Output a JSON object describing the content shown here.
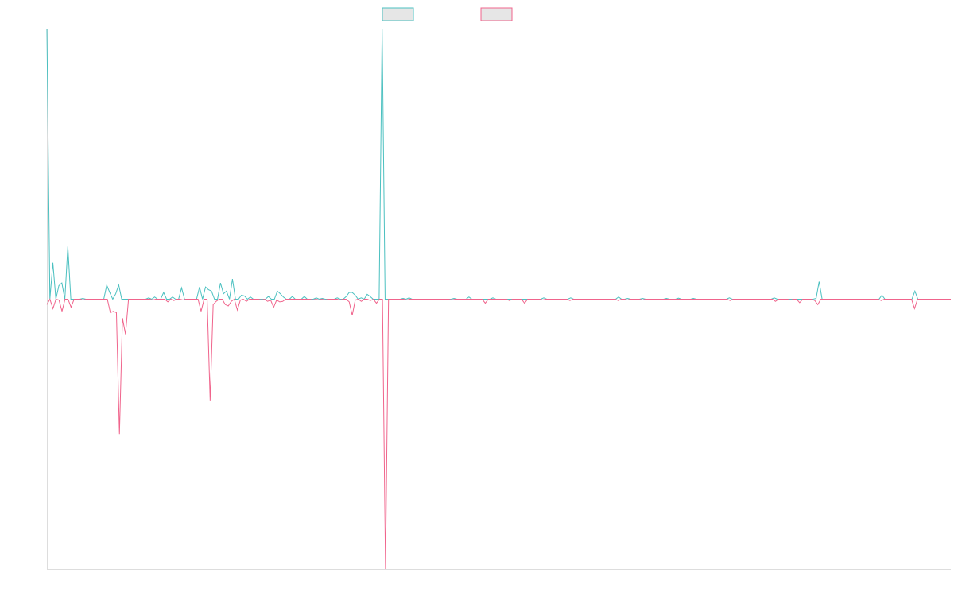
{
  "chart_data": {
    "type": "line",
    "title": "",
    "xlabel": "",
    "ylabel": "",
    "grid": false,
    "legend_position": "top-center",
    "ylim": [
      -1,
      1
    ],
    "series": [
      {
        "color": "#4bc0c0",
        "values": [
          1.0,
          0.0,
          0.135,
          0.0,
          0.05,
          0.06,
          0.0,
          0.195,
          0.0,
          0.0,
          0.0,
          0.0,
          0.003,
          0.0,
          0.0,
          0.0,
          0.0,
          0.0,
          0.0,
          0.0,
          0.052,
          0.025,
          0.0,
          0.02,
          0.053,
          0.0,
          0.0,
          0.0,
          0.0,
          0.0,
          0.0,
          0.0,
          0.0,
          0.0,
          0.005,
          0.0,
          0.008,
          0.0,
          0.0,
          0.025,
          0.0,
          0.0,
          0.008,
          0.0,
          0.0,
          0.042,
          0.0,
          0.0,
          0.0,
          0.0,
          0.0,
          0.045,
          0.0,
          0.045,
          0.035,
          0.03,
          0.0,
          0.0,
          0.06,
          0.02,
          0.03,
          0.0,
          0.075,
          0.0,
          0.0,
          0.015,
          0.012,
          0.0,
          0.008,
          0.0,
          0.0,
          0.0,
          0.0,
          0.0,
          0.01,
          0.0,
          0.0,
          0.03,
          0.02,
          0.008,
          0.0,
          0.0,
          0.01,
          0.0,
          0.0,
          0.0,
          0.01,
          0.0,
          0.0,
          0.0,
          0.005,
          0.0,
          0.003,
          0.0,
          0.0,
          0.0,
          0.0,
          0.005,
          0.0,
          0.0,
          0.01,
          0.025,
          0.025,
          0.015,
          0.0,
          0.005,
          0.0,
          0.018,
          0.01,
          0.0,
          0.0,
          0.0,
          1.0,
          0.0,
          0.0,
          0.0,
          0.0,
          0.0,
          0.0,
          0.003,
          0.0,
          0.005,
          0.0,
          0.0,
          0.0,
          0.0,
          0.0,
          0.0,
          0.0,
          0.0,
          0.0,
          0.0,
          0.0,
          0.0,
          0.0,
          0.0,
          0.003,
          0.0,
          0.0,
          0.0,
          0.0,
          0.008,
          0.0,
          0.0,
          0.0,
          0.0,
          0.0,
          0.0,
          0.0,
          0.005,
          0.0,
          0.0,
          0.0,
          0.0,
          0.0,
          0.0,
          0.0,
          0.0,
          0.0,
          0.0,
          0.0,
          0.0,
          0.0,
          0.0,
          0.0,
          0.0,
          0.005,
          0.0,
          0.0,
          0.0,
          0.0,
          0.0,
          0.0,
          0.0,
          0.0,
          0.005,
          0.0,
          0.0,
          0.0,
          0.0,
          0.0,
          0.0,
          0.0,
          0.0,
          0.0,
          0.0,
          0.0,
          0.0,
          0.0,
          0.0,
          0.0,
          0.008,
          0.0,
          0.0,
          0.003,
          0.0,
          0.0,
          0.0,
          0.0,
          0.003,
          0.0,
          0.0,
          0.0,
          0.0,
          0.0,
          0.0,
          0.0,
          0.003,
          0.0,
          0.0,
          0.0,
          0.004,
          0.0,
          0.0,
          0.0,
          0.0,
          0.003,
          0.0,
          0.0,
          0.0,
          0.0,
          0.0,
          0.0,
          0.0,
          0.0,
          0.0,
          0.0,
          0.0,
          0.005,
          0.0,
          0.0,
          0.0,
          0.0,
          0.0,
          0.0,
          0.0,
          0.0,
          0.0,
          0.0,
          0.0,
          0.0,
          0.0,
          0.0,
          0.005,
          0.0,
          0.0,
          0.0,
          0.0,
          0.0,
          0.0,
          0.0,
          0.0,
          0.0,
          0.0,
          0.0,
          0.0,
          0.0,
          0.003,
          0.065,
          0.0,
          0.0,
          0.0,
          0.0,
          0.0,
          0.0,
          0.0,
          0.0,
          0.0,
          0.0,
          0.0,
          0.0,
          0.0,
          0.0,
          0.0,
          0.0,
          0.0,
          0.0,
          0.0,
          0.0,
          0.015,
          0.0,
          0.0,
          0.0,
          0.0,
          0.0,
          0.0,
          0.0,
          0.0,
          0.0,
          0.0,
          0.03,
          0.0,
          0.0,
          0.0,
          0.0,
          0.0,
          0.0,
          0.0,
          0.0,
          0.0,
          0.0,
          0.0,
          0.0
        ]
      },
      {
        "color": "#f0648c",
        "values": [
          -0.02,
          0.0,
          -0.035,
          0.0,
          -0.003,
          -0.045,
          0.0,
          0.0,
          -0.03,
          0.0,
          0.0,
          0.0,
          -0.003,
          0.0,
          0.0,
          0.0,
          0.0,
          0.0,
          0.0,
          0.0,
          0.0,
          -0.05,
          -0.045,
          -0.05,
          -0.5,
          -0.07,
          -0.13,
          0.0,
          0.0,
          0.0,
          0.0,
          0.0,
          0.0,
          0.0,
          0.0,
          -0.003,
          0.0,
          0.0,
          0.0,
          0.0,
          -0.01,
          0.0,
          -0.005,
          0.0,
          0.0,
          -0.003,
          0.0,
          0.0,
          0.0,
          0.0,
          0.0,
          -0.045,
          0.0,
          0.0,
          -0.375,
          -0.02,
          -0.008,
          0.0,
          0.0,
          -0.02,
          -0.025,
          -0.008,
          0.0,
          -0.04,
          -0.003,
          0.0,
          -0.008,
          0.0,
          0.0,
          0.0,
          0.0,
          -0.003,
          0.0,
          -0.008,
          -0.003,
          -0.03,
          -0.003,
          -0.01,
          -0.008,
          0.0,
          0.0,
          0.0,
          0.0,
          0.0,
          0.0,
          0.0,
          0.0,
          0.0,
          -0.003,
          0.0,
          -0.003,
          0.0,
          -0.003,
          0.0,
          0.0,
          0.0,
          0.0,
          -0.003,
          0.0,
          0.0,
          -0.01,
          -0.06,
          -0.003,
          0.0,
          -0.008,
          0.0,
          0.0,
          -0.005,
          0.0,
          -0.015,
          0.0,
          0.0,
          -1.0,
          0.0,
          0.0,
          0.0,
          0.0,
          0.0,
          0.0,
          -0.003,
          0.0,
          0.0,
          0.0,
          0.0,
          0.0,
          0.0,
          0.0,
          0.0,
          0.0,
          0.0,
          0.0,
          0.0,
          0.0,
          0.0,
          -0.003,
          0.0,
          0.0,
          0.0,
          0.0,
          0.0,
          0.0,
          0.0,
          0.0,
          0.0,
          0.0,
          -0.015,
          0.0,
          0.0,
          0.0,
          0.0,
          0.0,
          0.0,
          0.0,
          -0.005,
          0.0,
          0.0,
          0.0,
          0.0,
          -0.015,
          0.0,
          0.0,
          0.0,
          0.0,
          0.0,
          -0.003,
          0.0,
          0.0,
          0.0,
          0.0,
          0.0,
          0.0,
          0.0,
          0.0,
          -0.005,
          0.0,
          0.0,
          0.0,
          0.0,
          0.0,
          0.0,
          0.0,
          0.0,
          0.0,
          0.0,
          0.0,
          0.0,
          0.0,
          0.0,
          0.0,
          -0.005,
          0.0,
          0.0,
          -0.003,
          0.0,
          0.0,
          0.0,
          0.0,
          -0.003,
          0.0,
          0.0,
          0.0,
          0.0,
          0.0,
          0.0,
          0.0,
          0.0,
          0.0,
          0.0,
          0.0,
          0.0,
          0.0,
          0.0,
          0.0,
          0.0,
          0.0,
          0.0,
          0.0,
          0.0,
          0.0,
          0.0,
          0.0,
          0.0,
          0.0,
          0.0,
          0.0,
          0.0,
          -0.005,
          0.0,
          0.0,
          0.0,
          0.0,
          0.0,
          0.0,
          0.0,
          0.0,
          0.0,
          0.0,
          0.0,
          0.0,
          0.0,
          0.0,
          -0.008,
          0.0,
          0.0,
          0.0,
          0.0,
          -0.003,
          0.0,
          0.0,
          -0.013,
          0.0,
          0.0,
          0.0,
          0.0,
          -0.005,
          -0.02,
          0.0,
          0.0,
          0.0,
          0.0,
          0.0,
          0.0,
          0.0,
          0.0,
          0.0,
          0.0,
          0.0,
          0.0,
          0.0,
          0.0,
          0.0,
          0.0,
          0.0,
          0.0,
          0.0,
          0.0,
          -0.005,
          0.0,
          0.0,
          0.0,
          0.0,
          0.0,
          0.0,
          0.0,
          0.0,
          0.0,
          0.0,
          -0.035,
          0.0,
          0.0,
          0.0,
          0.0,
          0.0,
          0.0,
          0.0,
          0.0,
          0.0,
          0.0,
          0.0,
          0.0
        ]
      }
    ]
  }
}
